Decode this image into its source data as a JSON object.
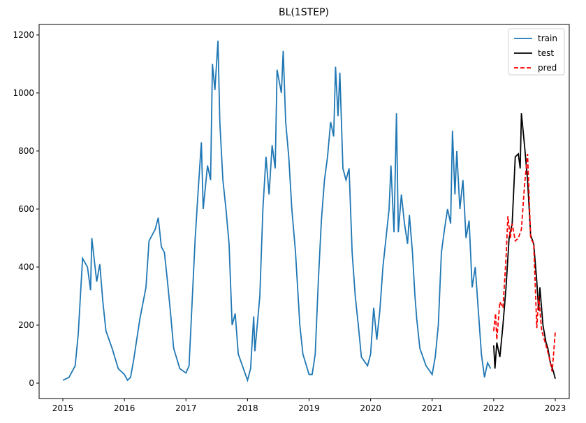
{
  "chart_data": {
    "type": "line",
    "title": "BL(1STEP)",
    "xlim": [
      2014.614,
      2023.227
    ],
    "xticks": [
      2015,
      2016,
      2017,
      2018,
      2019,
      2020,
      2021,
      2022,
      2023
    ],
    "ylim": [
      -53,
      1236
    ],
    "yticks": [
      0,
      200,
      400,
      600,
      800,
      1000,
      1200
    ],
    "legend": "upper right",
    "series": [
      {
        "name": "train",
        "color": "#1f77b4",
        "style": "solid",
        "x": [
          2015.0,
          2015.05,
          2015.1,
          2015.15,
          2015.2,
          2015.25,
          2015.32,
          2015.4,
          2015.45,
          2015.47,
          2015.55,
          2015.6,
          2015.65,
          2015.7,
          2015.8,
          2015.9,
          2016.0,
          2016.05,
          2016.1,
          2016.15,
          2016.25,
          2016.35,
          2016.4,
          2016.5,
          2016.55,
          2016.6,
          2016.65,
          2016.7,
          2016.75,
          2016.8,
          2016.9,
          2017.0,
          2017.05,
          2017.1,
          2017.15,
          2017.2,
          2017.25,
          2017.28,
          2017.35,
          2017.4,
          2017.43,
          2017.47,
          2017.52,
          2017.55,
          2017.6,
          2017.65,
          2017.7,
          2017.75,
          2017.8,
          2017.85,
          2017.95,
          2018.0,
          2018.05,
          2018.1,
          2018.12,
          2018.2,
          2018.25,
          2018.3,
          2018.35,
          2018.4,
          2018.45,
          2018.48,
          2018.55,
          2018.58,
          2018.62,
          2018.67,
          2018.72,
          2018.78,
          2018.85,
          2018.9,
          2019.0,
          2019.05,
          2019.1,
          2019.15,
          2019.2,
          2019.25,
          2019.3,
          2019.35,
          2019.4,
          2019.43,
          2019.47,
          2019.5,
          2019.55,
          2019.6,
          2019.65,
          2019.7,
          2019.75,
          2019.8,
          2019.85,
          2019.95,
          2020.0,
          2020.05,
          2020.1,
          2020.15,
          2020.2,
          2020.3,
          2020.33,
          2020.38,
          2020.42,
          2020.45,
          2020.5,
          2020.55,
          2020.6,
          2020.63,
          2020.68,
          2020.72,
          2020.75,
          2020.8,
          2020.9,
          2021.0,
          2021.05,
          2021.1,
          2021.15,
          2021.2,
          2021.25,
          2021.3,
          2021.33,
          2021.37,
          2021.4,
          2021.45,
          2021.5,
          2021.55,
          2021.6,
          2021.65,
          2021.7,
          2021.75,
          2021.8,
          2021.85,
          2021.9,
          2021.95
        ],
        "values": [
          10,
          15,
          20,
          40,
          60,
          170,
          430,
          400,
          320,
          500,
          350,
          410,
          280,
          180,
          120,
          50,
          30,
          10,
          20,
          80,
          220,
          330,
          490,
          530,
          570,
          470,
          450,
          350,
          240,
          120,
          50,
          35,
          60,
          280,
          500,
          670,
          830,
          600,
          750,
          700,
          1100,
          1010,
          1180,
          900,
          700,
          600,
          480,
          200,
          240,
          100,
          40,
          10,
          50,
          230,
          110,
          300,
          600,
          780,
          650,
          820,
          740,
          1080,
          1000,
          1145,
          900,
          780,
          600,
          450,
          200,
          100,
          30,
          30,
          100,
          350,
          560,
          700,
          780,
          900,
          850,
          1090,
          920,
          1070,
          740,
          700,
          740,
          450,
          300,
          200,
          90,
          60,
          100,
          260,
          150,
          250,
          400,
          600,
          750,
          520,
          930,
          520,
          650,
          550,
          480,
          580,
          450,
          300,
          220,
          120,
          60,
          30,
          90,
          200,
          450,
          530,
          600,
          550,
          870,
          650,
          800,
          600,
          700,
          500,
          560,
          330,
          400,
          250,
          100,
          20,
          70,
          50
        ]
      },
      {
        "name": "test",
        "color": "#000000",
        "style": "solid",
        "x": [
          2022.0,
          2022.02,
          2022.05,
          2022.1,
          2022.15,
          2022.2,
          2022.25,
          2022.3,
          2022.35,
          2022.4,
          2022.43,
          2022.45,
          2022.5,
          2022.55,
          2022.6,
          2022.65,
          2022.7,
          2022.73,
          2022.75,
          2022.8,
          2022.85,
          2022.88,
          2022.92,
          2022.97,
          2023.0
        ],
        "values": [
          130,
          50,
          140,
          90,
          200,
          330,
          500,
          550,
          780,
          790,
          740,
          930,
          820,
          700,
          510,
          480,
          350,
          250,
          330,
          200,
          140,
          120,
          70,
          40,
          15
        ]
      },
      {
        "name": "pred",
        "color": "#ff0000",
        "style": "dashed",
        "x": [
          2022.0,
          2022.03,
          2022.05,
          2022.1,
          2022.15,
          2022.2,
          2022.23,
          2022.27,
          2022.3,
          2022.35,
          2022.4,
          2022.45,
          2022.5,
          2022.55,
          2022.6,
          2022.65,
          2022.7,
          2022.73,
          2022.78,
          2022.85,
          2022.9,
          2022.95,
          2023.0
        ],
        "values": [
          180,
          240,
          150,
          280,
          260,
          430,
          575,
          500,
          550,
          490,
          500,
          530,
          680,
          790,
          500,
          480,
          190,
          300,
          180,
          130,
          90,
          40,
          175
        ]
      }
    ]
  }
}
